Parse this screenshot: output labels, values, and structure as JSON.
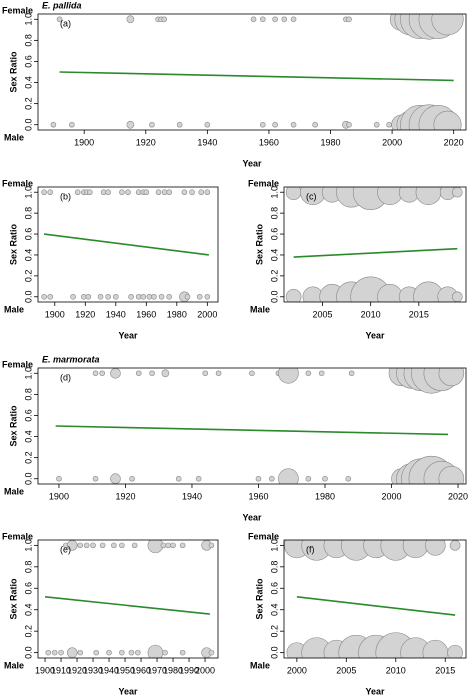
{
  "chart_data": [
    {
      "type": "scatter",
      "title": "E. pallida",
      "panel_label": "(a)",
      "xlabel": "Year",
      "ylabel": "Sex Ratio",
      "y_top_label": "Female",
      "y_bottom_label": "Male",
      "xlim": [
        1885,
        2024
      ],
      "xticks": [
        1900,
        1920,
        1940,
        1960,
        1980,
        2000,
        2020
      ],
      "ylim": [
        -0.05,
        1.05
      ],
      "yticks": [
        {
          "value": 0,
          "label": "0.0"
        },
        {
          "value": 0.2,
          "label": "0.2"
        },
        {
          "value": 0.4,
          "label": "0.4"
        },
        {
          "value": 0.6,
          "label": "0.6"
        },
        {
          "value": 0.8,
          "label": "0.8"
        },
        {
          "value": 1,
          "label": "1.0"
        }
      ],
      "point_color": "#d3d3d3",
      "points": [
        [
          1892,
          1,
          1
        ],
        [
          1915,
          1,
          2
        ],
        [
          1924,
          1,
          1
        ],
        [
          1925,
          1,
          1
        ],
        [
          1926,
          1,
          1
        ],
        [
          1955,
          1,
          1
        ],
        [
          1958,
          1,
          1
        ],
        [
          1962,
          1,
          1
        ],
        [
          1965,
          1,
          1
        ],
        [
          1968,
          1,
          1
        ],
        [
          1985,
          1,
          1
        ],
        [
          1986,
          1,
          1
        ],
        [
          2003,
          1,
          20
        ],
        [
          2006,
          1,
          40
        ],
        [
          2009,
          1,
          60
        ],
        [
          2012,
          1,
          64
        ],
        [
          2015,
          1,
          60
        ],
        [
          2018,
          1,
          40
        ],
        [
          1890,
          0,
          1
        ],
        [
          1896,
          0,
          1
        ],
        [
          1915,
          0,
          2
        ],
        [
          1922,
          0,
          1
        ],
        [
          1931,
          0,
          1
        ],
        [
          1940,
          0,
          1
        ],
        [
          1958,
          0,
          1
        ],
        [
          1962,
          0,
          1
        ],
        [
          1968,
          0,
          1
        ],
        [
          1975,
          0,
          1
        ],
        [
          1985,
          0,
          2
        ],
        [
          1986,
          0,
          1
        ],
        [
          1995,
          0,
          1
        ],
        [
          1999,
          0,
          1
        ],
        [
          2003,
          0,
          15
        ],
        [
          2006,
          0,
          30
        ],
        [
          2009,
          0,
          60
        ],
        [
          2012,
          0,
          64
        ],
        [
          2015,
          0,
          60
        ],
        [
          2018,
          0,
          30
        ]
      ],
      "trend": {
        "color": "#2a8a2a",
        "x": [
          1892,
          2020
        ],
        "y": [
          0.5,
          0.42
        ]
      }
    },
    {
      "type": "scatter",
      "panel_label": "(b)",
      "xlabel": "Year",
      "ylabel": "Sex Ratio",
      "y_top_label": "Female",
      "y_bottom_label": "Male",
      "xlim": [
        1889,
        2007
      ],
      "xticks": [
        1900,
        1920,
        1940,
        1960,
        1980,
        2000
      ],
      "ylim": [
        -0.05,
        1.05
      ],
      "yticks": [
        {
          "value": 0,
          "label": "0.0"
        },
        {
          "value": 0.2,
          "label": "0.2"
        },
        {
          "value": 0.4,
          "label": "0.4"
        },
        {
          "value": 0.6,
          "label": "0.6"
        },
        {
          "value": 0.8,
          "label": "0.8"
        },
        {
          "value": 1,
          "label": "1.0"
        }
      ],
      "point_color": "#d3d3d3",
      "points": [
        [
          1893,
          1,
          1
        ],
        [
          1897,
          1,
          1
        ],
        [
          1915,
          1,
          1
        ],
        [
          1919,
          1,
          1
        ],
        [
          1921,
          1,
          1
        ],
        [
          1923,
          1,
          1
        ],
        [
          1932,
          1,
          1
        ],
        [
          1935,
          1,
          1
        ],
        [
          1944,
          1,
          1
        ],
        [
          1948,
          1,
          1
        ],
        [
          1955,
          1,
          1
        ],
        [
          1958,
          1,
          1
        ],
        [
          1960,
          1,
          1
        ],
        [
          1968,
          1,
          1
        ],
        [
          1972,
          1,
          1
        ],
        [
          1975,
          1,
          1
        ],
        [
          1985,
          1,
          1
        ],
        [
          1990,
          1,
          1
        ],
        [
          1996,
          1,
          1
        ],
        [
          2000,
          1,
          1
        ],
        [
          1893,
          0,
          1
        ],
        [
          1897,
          0,
          1
        ],
        [
          1912,
          0,
          1
        ],
        [
          1919,
          0,
          1
        ],
        [
          1922,
          0,
          1
        ],
        [
          1930,
          0,
          1
        ],
        [
          1935,
          0,
          1
        ],
        [
          1940,
          0,
          1
        ],
        [
          1950,
          0,
          1
        ],
        [
          1955,
          0,
          1
        ],
        [
          1958,
          0,
          1
        ],
        [
          1962,
          0,
          1
        ],
        [
          1965,
          0,
          1
        ],
        [
          1970,
          0,
          1
        ],
        [
          1975,
          0,
          1
        ],
        [
          1985,
          0,
          4
        ],
        [
          1987,
          0,
          1
        ],
        [
          1995,
          0,
          1
        ],
        [
          2000,
          0,
          1
        ]
      ],
      "trend": {
        "color": "#2a8a2a",
        "x": [
          1893,
          2001
        ],
        "y": [
          0.6,
          0.4
        ]
      }
    },
    {
      "type": "scatter",
      "panel_label": "(c)",
      "xlabel": "Year",
      "ylabel": "Sex Ratio",
      "y_top_label": "Female",
      "y_bottom_label": "Male",
      "xlim": [
        2001,
        2019.9
      ],
      "xticks": [
        2005,
        2010,
        2015
      ],
      "ylim": [
        -0.05,
        1.05
      ],
      "yticks": [
        {
          "value": 0,
          "label": "0.0"
        },
        {
          "value": 0.2,
          "label": "0.2"
        },
        {
          "value": 0.4,
          "label": "0.4"
        },
        {
          "value": 0.6,
          "label": "0.6"
        },
        {
          "value": 0.8,
          "label": "0.8"
        },
        {
          "value": 1,
          "label": "1.0"
        }
      ],
      "point_color": "#d3d3d3",
      "points": [
        [
          2002,
          1,
          9
        ],
        [
          2004,
          1,
          25
        ],
        [
          2006,
          1,
          16
        ],
        [
          2008,
          1,
          36
        ],
        [
          2010,
          1,
          49
        ],
        [
          2012,
          1,
          25
        ],
        [
          2014,
          1,
          16
        ],
        [
          2016,
          1,
          25
        ],
        [
          2018,
          1,
          9
        ],
        [
          2019,
          1,
          4
        ],
        [
          2002,
          0,
          9
        ],
        [
          2004,
          0,
          16
        ],
        [
          2006,
          0,
          25
        ],
        [
          2008,
          0,
          36
        ],
        [
          2010,
          0,
          64
        ],
        [
          2012,
          0,
          25
        ],
        [
          2014,
          0,
          16
        ],
        [
          2016,
          0,
          36
        ],
        [
          2018,
          0,
          16
        ],
        [
          2019,
          0,
          4
        ]
      ],
      "trend": {
        "color": "#2a8a2a",
        "x": [
          2002,
          2019
        ],
        "y": [
          0.38,
          0.46
        ]
      }
    },
    {
      "type": "scatter",
      "title": "E. marmorata",
      "panel_label": "(d)",
      "xlabel": "Year",
      "ylabel": "Sex Ratio",
      "y_top_label": "Female",
      "y_bottom_label": "Male",
      "xlim": [
        1893.7,
        2022.4
      ],
      "xticks": [
        1900,
        1920,
        1940,
        1960,
        1980,
        2000,
        2020
      ],
      "ylim": [
        -0.05,
        1.05
      ],
      "yticks": [
        {
          "value": 0,
          "label": "0.0"
        },
        {
          "value": 0.2,
          "label": "0.2"
        },
        {
          "value": 0.4,
          "label": "0.4"
        },
        {
          "value": 0.6,
          "label": "0.6"
        },
        {
          "value": 0.8,
          "label": "0.8"
        },
        {
          "value": 1,
          "label": "1.0"
        }
      ],
      "point_color": "#d3d3d3",
      "points": [
        [
          1911,
          1,
          1
        ],
        [
          1913,
          1,
          1
        ],
        [
          1917,
          1,
          4
        ],
        [
          1924,
          1,
          1
        ],
        [
          1928,
          1,
          1
        ],
        [
          1932,
          1,
          2
        ],
        [
          1944,
          1,
          1
        ],
        [
          1948,
          1,
          1
        ],
        [
          1958,
          1,
          1
        ],
        [
          1966,
          1,
          1
        ],
        [
          1969,
          1,
          16
        ],
        [
          1975,
          1,
          1
        ],
        [
          1979,
          1,
          1
        ],
        [
          1988,
          1,
          1
        ],
        [
          2003,
          1,
          25
        ],
        [
          2006,
          1,
          36
        ],
        [
          2009,
          1,
          49
        ],
        [
          2012,
          1,
          64
        ],
        [
          2015,
          1,
          49
        ],
        [
          2018,
          1,
          25
        ],
        [
          1900,
          0,
          1
        ],
        [
          1911,
          0,
          1
        ],
        [
          1917,
          0,
          4
        ],
        [
          1922,
          0,
          1
        ],
        [
          1936,
          0,
          1
        ],
        [
          1942,
          0,
          1
        ],
        [
          1960,
          0,
          1
        ],
        [
          1964,
          0,
          1
        ],
        [
          1969,
          0,
          16
        ],
        [
          1975,
          0,
          1
        ],
        [
          1980,
          0,
          1
        ],
        [
          1987,
          0,
          1
        ],
        [
          2003,
          0,
          16
        ],
        [
          2006,
          0,
          36
        ],
        [
          2009,
          0,
          64
        ],
        [
          2012,
          0,
          81
        ],
        [
          2015,
          0,
          49
        ],
        [
          2018,
          0,
          25
        ]
      ],
      "trend": {
        "color": "#2a8a2a",
        "x": [
          1899,
          2017
        ],
        "y": [
          0.5,
          0.42
        ]
      }
    },
    {
      "type": "scatter",
      "panel_label": "(e)",
      "xlabel": "Year",
      "ylabel": "Sex Ratio",
      "y_top_label": "Female",
      "y_bottom_label": "Male",
      "xlim": [
        1895.6,
        2008.1
      ],
      "xticks": [
        1900,
        1910,
        1920,
        1930,
        1940,
        1950,
        1960,
        1970,
        1980,
        1990,
        2000
      ],
      "ylim": [
        -0.05,
        1.05
      ],
      "yticks": [
        {
          "value": 0,
          "label": "0.0"
        },
        {
          "value": 0.2,
          "label": "0.2"
        },
        {
          "value": 0.4,
          "label": "0.4"
        },
        {
          "value": 0.6,
          "label": "0.6"
        },
        {
          "value": 0.8,
          "label": "0.8"
        },
        {
          "value": 1,
          "label": "1.0"
        }
      ],
      "point_color": "#d3d3d3",
      "points": [
        [
          1913,
          1,
          1
        ],
        [
          1917,
          1,
          4
        ],
        [
          1922,
          1,
          1
        ],
        [
          1926,
          1,
          1
        ],
        [
          1930,
          1,
          1
        ],
        [
          1936,
          1,
          1
        ],
        [
          1943,
          1,
          1
        ],
        [
          1948,
          1,
          1
        ],
        [
          1956,
          1,
          1
        ],
        [
          1969,
          1,
          9
        ],
        [
          1974,
          1,
          1
        ],
        [
          1977,
          1,
          1
        ],
        [
          1980,
          1,
          1
        ],
        [
          1986,
          1,
          1
        ],
        [
          2001,
          1,
          4
        ],
        [
          2004,
          1,
          1
        ],
        [
          1902,
          0,
          1
        ],
        [
          1906,
          0,
          1
        ],
        [
          1910,
          0,
          1
        ],
        [
          1917,
          0,
          4
        ],
        [
          1922,
          0,
          1
        ],
        [
          1932,
          0,
          1
        ],
        [
          1940,
          0,
          1
        ],
        [
          1948,
          0,
          1
        ],
        [
          1954,
          0,
          1
        ],
        [
          1958,
          0,
          1
        ],
        [
          1969,
          0,
          9
        ],
        [
          1975,
          0,
          1
        ],
        [
          1986,
          0,
          1
        ],
        [
          2001,
          0,
          4
        ],
        [
          2004,
          0,
          1
        ]
      ],
      "trend": {
        "color": "#2a8a2a",
        "x": [
          1900,
          2003
        ],
        "y": [
          0.52,
          0.36
        ]
      }
    },
    {
      "type": "scatter",
      "panel_label": "(f)",
      "xlabel": "Year",
      "ylabel": "Sex Ratio",
      "y_top_label": "Female",
      "y_bottom_label": "Male",
      "xlim": [
        1998.7,
        2017.1
      ],
      "xticks": [
        2000,
        2005,
        2010,
        2015
      ],
      "ylim": [
        -0.05,
        1.05
      ],
      "yticks": [
        {
          "value": 0,
          "label": "0.0"
        },
        {
          "value": 0.2,
          "label": "0.2"
        },
        {
          "value": 0.4,
          "label": "0.4"
        },
        {
          "value": 0.6,
          "label": "0.6"
        },
        {
          "value": 0.8,
          "label": "0.8"
        },
        {
          "value": 1,
          "label": "1.0"
        }
      ],
      "point_color": "#d3d3d3",
      "points": [
        [
          2000,
          1,
          25
        ],
        [
          2002,
          1,
          36
        ],
        [
          2004,
          1,
          25
        ],
        [
          2006,
          1,
          36
        ],
        [
          2008,
          1,
          25
        ],
        [
          2010,
          1,
          36
        ],
        [
          2012,
          1,
          25
        ],
        [
          2014,
          1,
          16
        ],
        [
          2016,
          1,
          4
        ],
        [
          2000,
          0,
          16
        ],
        [
          2002,
          0,
          36
        ],
        [
          2004,
          0,
          25
        ],
        [
          2006,
          0,
          49
        ],
        [
          2008,
          0,
          49
        ],
        [
          2010,
          0,
          64
        ],
        [
          2012,
          0,
          36
        ],
        [
          2014,
          0,
          25
        ],
        [
          2016,
          0,
          9
        ]
      ],
      "trend": {
        "color": "#2a8a2a",
        "x": [
          2000,
          2016
        ],
        "y": [
          0.52,
          0.35
        ]
      }
    }
  ]
}
